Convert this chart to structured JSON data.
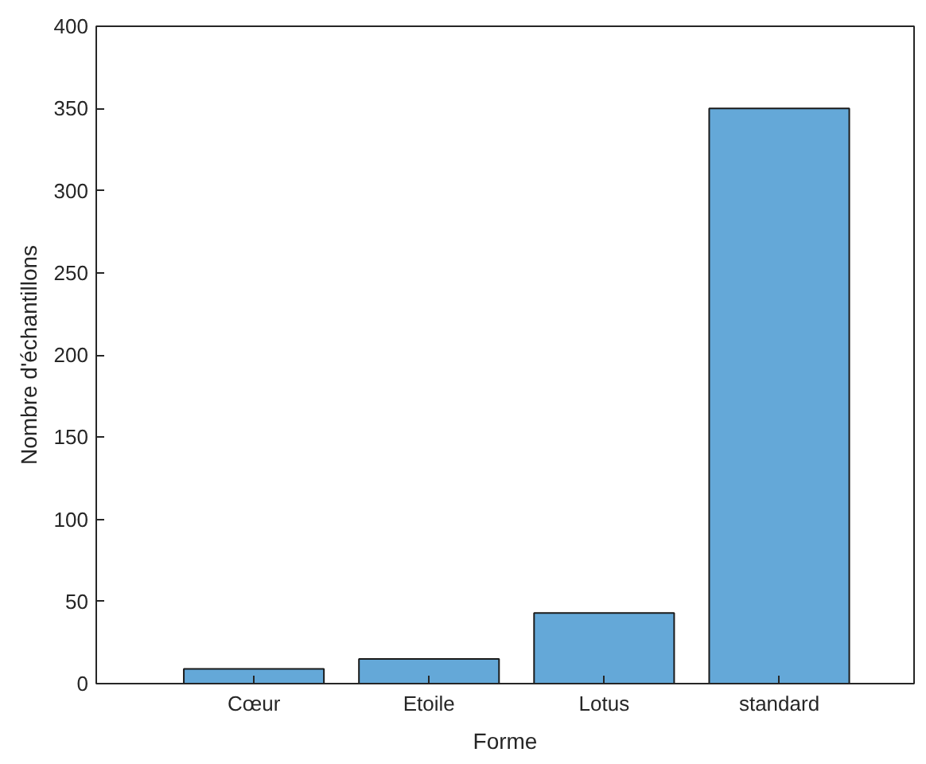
{
  "chart_data": {
    "type": "bar",
    "xlabel": "Forme",
    "ylabel": "Nombre d'échantillons",
    "categories": [
      "Cœur",
      "Etoile",
      "Lotus",
      "standard"
    ],
    "values": [
      9,
      15,
      43,
      350
    ],
    "color": "#64a8d8",
    "ylim": [
      0,
      400
    ],
    "yticks": [
      0,
      50,
      100,
      150,
      200,
      250,
      300,
      350,
      400
    ],
    "grid": false
  }
}
